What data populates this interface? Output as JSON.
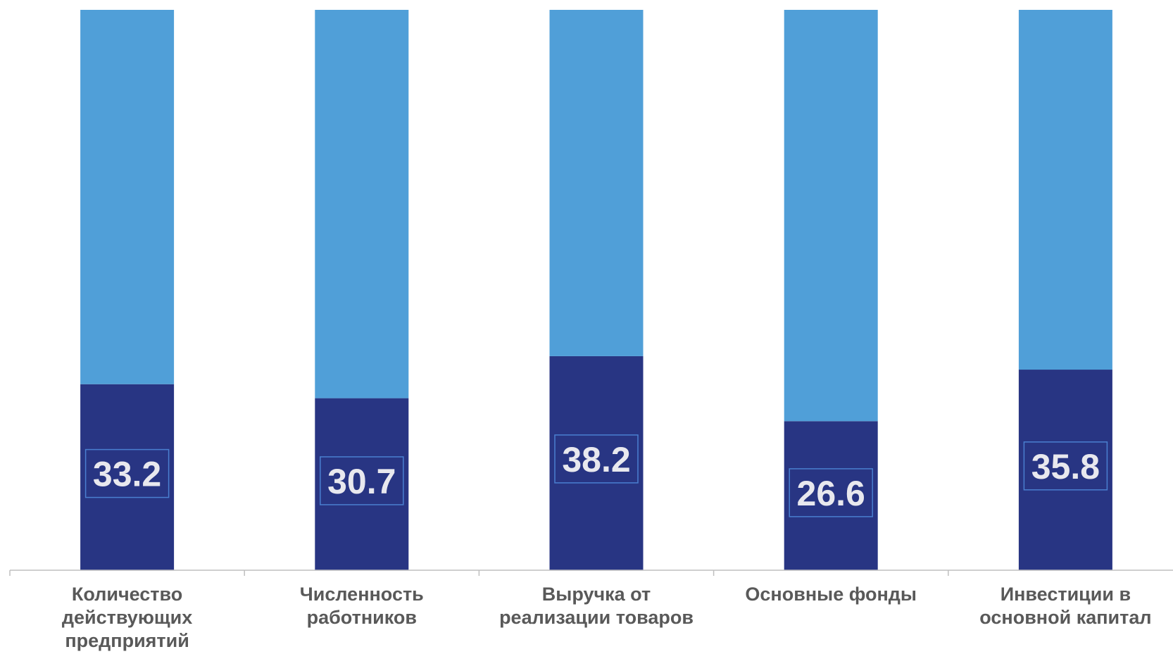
{
  "chart_data": {
    "type": "bar",
    "stacked": "percent",
    "categories": [
      [
        "Количество",
        "действующих",
        "предприятий"
      ],
      [
        "Численность",
        "работников"
      ],
      [
        "Выручка от",
        "реализации товаров"
      ],
      [
        "Основные фонды"
      ],
      [
        "Инвестиции в",
        "основной капитал"
      ]
    ],
    "series": [
      {
        "values": [
          33.2,
          30.7,
          38.2,
          26.6,
          35.8
        ],
        "labels": [
          "33.2",
          "30.7",
          "38.2",
          "26.6",
          "35.8"
        ],
        "color": "#283583"
      },
      {
        "values": [
          66.8,
          69.3,
          61.8,
          73.4,
          64.2
        ],
        "color": "#509fd8"
      }
    ],
    "ylim": [
      0,
      100
    ],
    "grid": false,
    "legend": "none"
  }
}
